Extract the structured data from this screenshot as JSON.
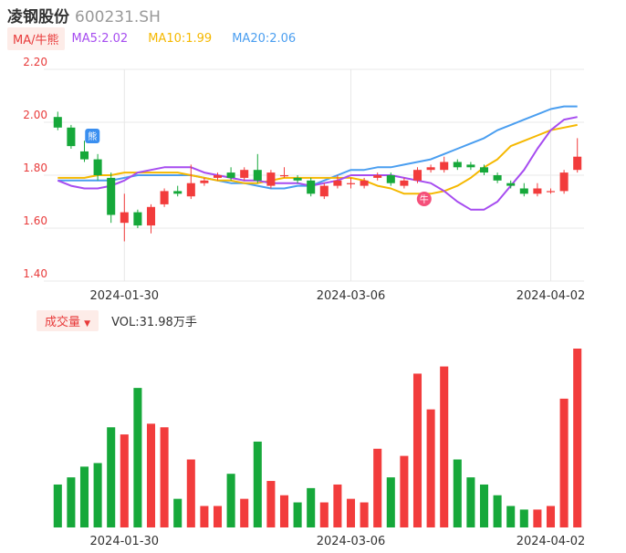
{
  "header": {
    "name": "凌钢股份",
    "code": "600231.SH"
  },
  "ma_bar": {
    "button_label": "MA/牛熊",
    "items": [
      {
        "label": "MA5:2.02",
        "color": "#a64cf0"
      },
      {
        "label": "MA10:1.99",
        "color": "#f5b800"
      },
      {
        "label": "MA20:2.06",
        "color": "#4a9ef0"
      }
    ]
  },
  "volume_bar": {
    "button_label": "成交量",
    "value_text": "VOL:31.98万手"
  },
  "markers": {
    "bear": "熊",
    "bull": "牛"
  },
  "colors": {
    "up": "#f23c3c",
    "down": "#16a83a",
    "grid": "#e8e8e8",
    "axis_text": "#e83a3a"
  },
  "chart_data": {
    "type": "candlestick",
    "y_ticks": [
      "2.20",
      "2.00",
      "1.80",
      "1.60",
      "1.40"
    ],
    "ylim": [
      1.4,
      2.2
    ],
    "x_ticks": [
      {
        "label": "2024-01-30",
        "index": 5
      },
      {
        "label": "2024-03-06",
        "index": 22
      },
      {
        "label": "2024-04-02",
        "index": 37
      }
    ],
    "candles": [
      {
        "o": 2.02,
        "c": 1.98,
        "h": 2.04,
        "l": 1.97
      },
      {
        "o": 1.98,
        "c": 1.91,
        "h": 1.99,
        "l": 1.9
      },
      {
        "o": 1.89,
        "c": 1.86,
        "h": 1.93,
        "l": 1.85
      },
      {
        "o": 1.86,
        "c": 1.8,
        "h": 1.88,
        "l": 1.78
      },
      {
        "o": 1.79,
        "c": 1.65,
        "h": 1.81,
        "l": 1.62
      },
      {
        "o": 1.62,
        "c": 1.66,
        "h": 1.73,
        "l": 1.55
      },
      {
        "o": 1.66,
        "c": 1.61,
        "h": 1.67,
        "l": 1.6
      },
      {
        "o": 1.61,
        "c": 1.68,
        "h": 1.69,
        "l": 1.58
      },
      {
        "o": 1.69,
        "c": 1.74,
        "h": 1.75,
        "l": 1.68
      },
      {
        "o": 1.74,
        "c": 1.73,
        "h": 1.76,
        "l": 1.72
      },
      {
        "o": 1.72,
        "c": 1.77,
        "h": 1.84,
        "l": 1.71
      },
      {
        "o": 1.77,
        "c": 1.78,
        "h": 1.79,
        "l": 1.76
      },
      {
        "o": 1.79,
        "c": 1.8,
        "h": 1.81,
        "l": 1.78
      },
      {
        "o": 1.81,
        "c": 1.79,
        "h": 1.83,
        "l": 1.78
      },
      {
        "o": 1.79,
        "c": 1.82,
        "h": 1.83,
        "l": 1.78
      },
      {
        "o": 1.82,
        "c": 1.78,
        "h": 1.88,
        "l": 1.77
      },
      {
        "o": 1.76,
        "c": 1.81,
        "h": 1.82,
        "l": 1.75
      },
      {
        "o": 1.8,
        "c": 1.8,
        "h": 1.83,
        "l": 1.79
      },
      {
        "o": 1.79,
        "c": 1.78,
        "h": 1.8,
        "l": 1.77
      },
      {
        "o": 1.78,
        "c": 1.73,
        "h": 1.79,
        "l": 1.72
      },
      {
        "o": 1.72,
        "c": 1.76,
        "h": 1.77,
        "l": 1.71
      },
      {
        "o": 1.76,
        "c": 1.78,
        "h": 1.8,
        "l": 1.75
      },
      {
        "o": 1.77,
        "c": 1.77,
        "h": 1.79,
        "l": 1.75
      },
      {
        "o": 1.76,
        "c": 1.78,
        "h": 1.79,
        "l": 1.75
      },
      {
        "o": 1.79,
        "c": 1.8,
        "h": 1.81,
        "l": 1.78
      },
      {
        "o": 1.8,
        "c": 1.77,
        "h": 1.81,
        "l": 1.76
      },
      {
        "o": 1.76,
        "c": 1.78,
        "h": 1.79,
        "l": 1.75
      },
      {
        "o": 1.78,
        "c": 1.82,
        "h": 1.83,
        "l": 1.77
      },
      {
        "o": 1.82,
        "c": 1.83,
        "h": 1.84,
        "l": 1.81
      },
      {
        "o": 1.82,
        "c": 1.85,
        "h": 1.87,
        "l": 1.81
      },
      {
        "o": 1.85,
        "c": 1.83,
        "h": 1.86,
        "l": 1.82
      },
      {
        "o": 1.84,
        "c": 1.83,
        "h": 1.85,
        "l": 1.82
      },
      {
        "o": 1.83,
        "c": 1.81,
        "h": 1.84,
        "l": 1.8
      },
      {
        "o": 1.8,
        "c": 1.78,
        "h": 1.81,
        "l": 1.77
      },
      {
        "o": 1.77,
        "c": 1.76,
        "h": 1.78,
        "l": 1.75
      },
      {
        "o": 1.75,
        "c": 1.73,
        "h": 1.77,
        "l": 1.72
      },
      {
        "o": 1.73,
        "c": 1.75,
        "h": 1.77,
        "l": 1.72
      },
      {
        "o": 1.74,
        "c": 1.74,
        "h": 1.75,
        "l": 1.73
      },
      {
        "o": 1.74,
        "c": 1.81,
        "h": 1.82,
        "l": 1.73
      },
      {
        "o": 1.82,
        "c": 1.87,
        "h": 1.94,
        "l": 1.81
      }
    ],
    "ma5": [
      1.78,
      1.76,
      1.75,
      1.75,
      1.76,
      1.78,
      1.81,
      1.82,
      1.83,
      1.83,
      1.83,
      1.81,
      1.8,
      1.79,
      1.78,
      1.78,
      1.77,
      1.77,
      1.77,
      1.76,
      1.77,
      1.78,
      1.8,
      1.8,
      1.8,
      1.8,
      1.79,
      1.78,
      1.77,
      1.74,
      1.7,
      1.67,
      1.67,
      1.7,
      1.76,
      1.82,
      1.9,
      1.97,
      2.01,
      2.02
    ],
    "ma10": [
      1.79,
      1.79,
      1.79,
      1.8,
      1.8,
      1.81,
      1.81,
      1.81,
      1.81,
      1.81,
      1.8,
      1.79,
      1.78,
      1.78,
      1.77,
      1.77,
      1.78,
      1.79,
      1.79,
      1.79,
      1.79,
      1.79,
      1.79,
      1.78,
      1.76,
      1.75,
      1.73,
      1.73,
      1.73,
      1.74,
      1.76,
      1.79,
      1.83,
      1.86,
      1.91,
      1.93,
      1.95,
      1.97,
      1.98,
      1.99
    ],
    "ma20": [
      1.78,
      1.78,
      1.78,
      1.78,
      1.78,
      1.79,
      1.8,
      1.8,
      1.8,
      1.8,
      1.8,
      1.79,
      1.78,
      1.77,
      1.77,
      1.76,
      1.75,
      1.75,
      1.76,
      1.76,
      1.78,
      1.8,
      1.82,
      1.82,
      1.83,
      1.83,
      1.84,
      1.85,
      1.86,
      1.88,
      1.9,
      1.92,
      1.94,
      1.97,
      1.99,
      2.01,
      2.03,
      2.05,
      2.06,
      2.06
    ],
    "volume": [
      12,
      14,
      17,
      18,
      28,
      26,
      39,
      29,
      28,
      8,
      19,
      6,
      6,
      15,
      8,
      24,
      13,
      9,
      7,
      11,
      7,
      12,
      8,
      7,
      22,
      14,
      20,
      43,
      33,
      45,
      19,
      14,
      12,
      9,
      6,
      5,
      5,
      6,
      36,
      50
    ],
    "vol_ylim": [
      0,
      50
    ]
  }
}
